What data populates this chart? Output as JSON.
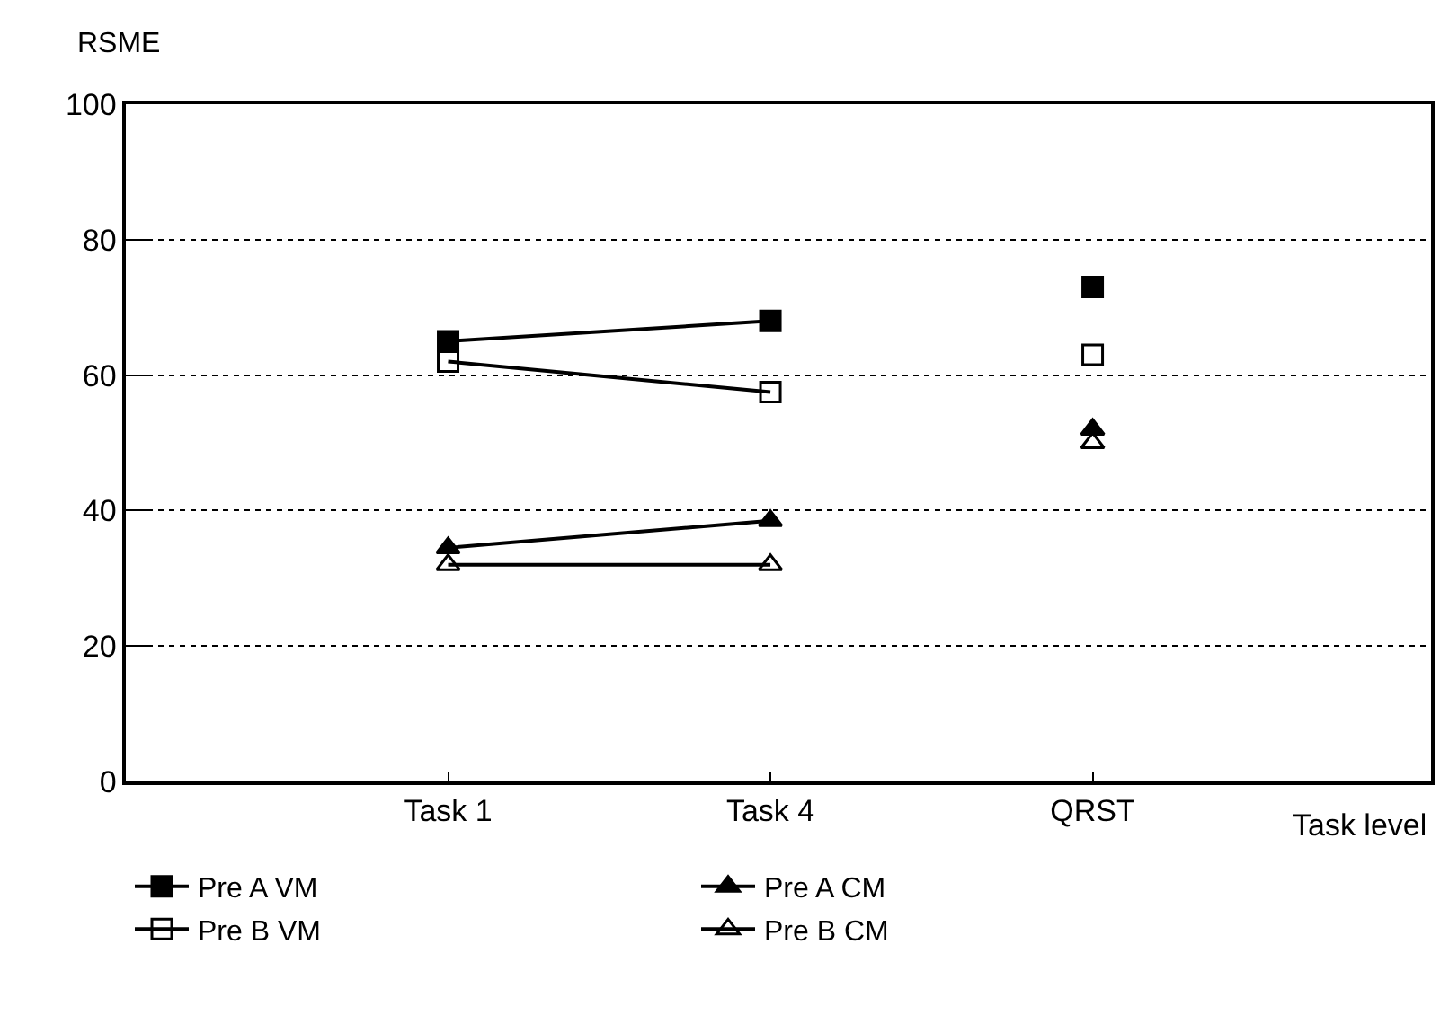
{
  "chart_data": {
    "type": "line",
    "ylabel": "RSME",
    "xlabel": "Task level",
    "categories": [
      "Task 1",
      "Task 4",
      "QRST"
    ],
    "ylim": [
      0,
      100
    ],
    "yticks": [
      0,
      20,
      40,
      60,
      80,
      100
    ],
    "grid": "y",
    "legend": "bottom",
    "line_style": "solid",
    "series": [
      {
        "name": "Pre A VM",
        "color": "#000000",
        "marker": "square",
        "values": [
          65,
          68,
          null
        ]
      },
      {
        "name": "Pre A CM",
        "color": "#000000",
        "marker": "triangle",
        "values": [
          34.5,
          38.5,
          null
        ]
      },
      {
        "name": "Pre B VM",
        "color": "#000000",
        "marker": "square-open",
        "values": [
          62,
          57.5,
          null
        ]
      },
      {
        "name": "Pre B CM",
        "color": "#000000",
        "marker": "triangle-open",
        "values": [
          32,
          32,
          null
        ]
      },
      {
        "type": "scatter",
        "color": "#000000",
        "marker": "square",
        "values": [
          null,
          null,
          73
        ]
      },
      {
        "type": "scatter",
        "color": "#000000",
        "marker": "triangle",
        "values": [
          null,
          null,
          52
        ]
      },
      {
        "type": "scatter",
        "color": "#000000",
        "marker": "square-open",
        "values": [
          null,
          null,
          63
        ]
      },
      {
        "type": "scatter",
        "color": "#000000",
        "marker": "triangle-open",
        "values": [
          null,
          null,
          50
        ]
      }
    ]
  }
}
